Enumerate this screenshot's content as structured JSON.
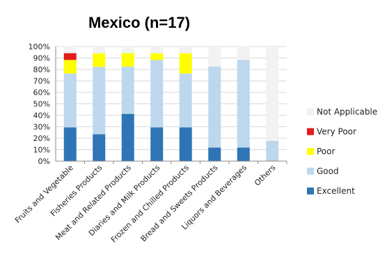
{
  "chart_data": {
    "type": "bar",
    "stacked": true,
    "title": "Mexico (n=17)",
    "xlabel": "",
    "ylabel": "",
    "ylim": [
      0,
      100
    ],
    "y_ticks": [
      "0%",
      "10%",
      "20%",
      "30%",
      "40%",
      "50%",
      "60%",
      "70%",
      "80%",
      "90%",
      "100%"
    ],
    "grid": true,
    "legend_position": "right",
    "categories": [
      "Fruits and Vegetable",
      "Fisheries Products",
      "Meat and Related Products",
      "Diaries and Milk Products",
      "Frozen and Chilled Products",
      "Bread and Sweets Products",
      "Liquors and Beverages",
      "Others"
    ],
    "series": [
      {
        "name": "Excellent",
        "color": "#2e75b6",
        "values": [
          29.4,
          23.5,
          41.2,
          29.4,
          29.4,
          11.8,
          11.8,
          0
        ]
      },
      {
        "name": "Good",
        "color": "#bdd7ee",
        "values": [
          47.1,
          58.8,
          41.2,
          58.8,
          47.1,
          70.6,
          76.5,
          17.6
        ]
      },
      {
        "name": "Poor",
        "color": "#ffff00",
        "values": [
          11.8,
          11.8,
          11.8,
          5.9,
          17.6,
          0,
          0,
          0
        ]
      },
      {
        "name": "Very Poor",
        "color": "#e31a1c",
        "values": [
          5.9,
          0,
          0,
          0,
          0,
          0,
          0,
          0
        ]
      },
      {
        "name": "Not Applicable",
        "color": "#f2f2f2",
        "values": [
          5.9,
          5.9,
          5.9,
          5.9,
          5.9,
          17.6,
          11.8,
          82.4
        ]
      }
    ],
    "legend_order": [
      "Not Applicable",
      "Very Poor",
      "Poor",
      "Good",
      "Excellent"
    ]
  }
}
